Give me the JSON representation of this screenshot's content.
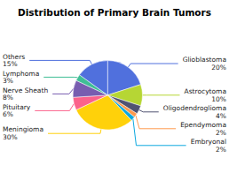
{
  "chart_data": {
    "type": "pie",
    "title": "Distribution of Primary Brain Tumors",
    "categories": [
      "Glioblastoma",
      "Astrocytoma",
      "Oligodendroglioma",
      "Ependymoma",
      "Embryonal",
      "Meningioma",
      "Pituitary",
      "Nerve Sheath",
      "Lymphoma",
      "Others"
    ],
    "values": [
      20,
      10,
      4,
      2,
      2,
      30,
      6,
      8,
      3,
      15
    ],
    "value_labels": [
      "20%",
      "10%",
      "4%",
      "2%",
      "2%",
      "30%",
      "6%",
      "8%",
      "3%",
      "15%"
    ],
    "data_labels": true
  }
}
